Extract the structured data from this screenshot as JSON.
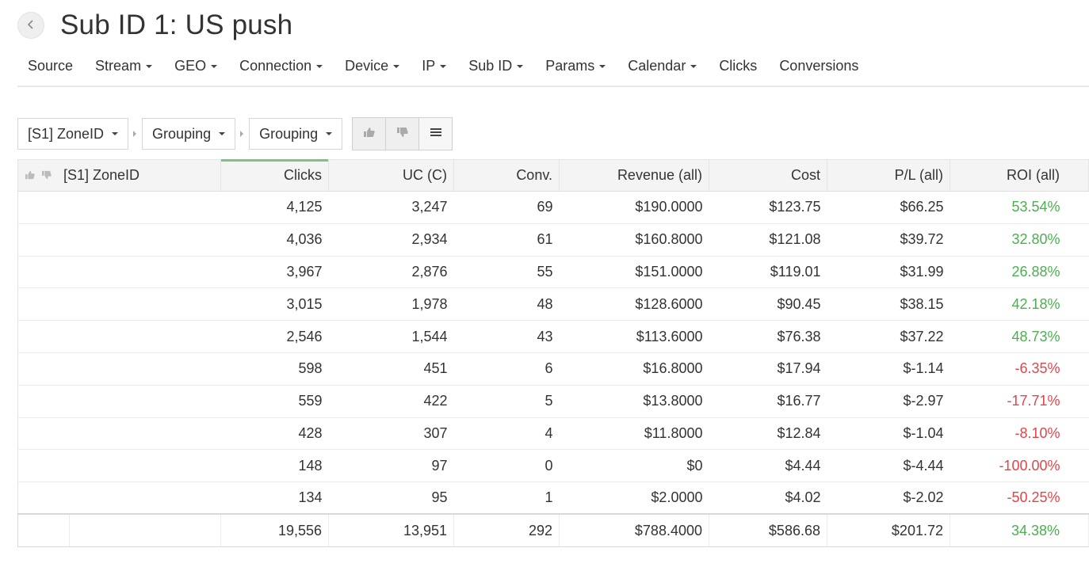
{
  "header": {
    "back_icon": "chevron-left-icon",
    "title": "Sub ID 1: US push"
  },
  "nav": {
    "items": [
      {
        "label": "Source",
        "dropdown": false
      },
      {
        "label": "Stream",
        "dropdown": true
      },
      {
        "label": "GEO",
        "dropdown": true
      },
      {
        "label": "Connection",
        "dropdown": true
      },
      {
        "label": "Device",
        "dropdown": true
      },
      {
        "label": "IP",
        "dropdown": true
      },
      {
        "label": "Sub ID",
        "dropdown": true
      },
      {
        "label": "Params",
        "dropdown": true
      },
      {
        "label": "Calendar",
        "dropdown": true
      },
      {
        "label": "Clicks",
        "dropdown": false
      },
      {
        "label": "Conversions",
        "dropdown": false
      }
    ]
  },
  "toolbar": {
    "group1": "[S1] ZoneID",
    "group2": "Grouping",
    "group3": "Grouping",
    "icons": [
      "thumbs-up-icon",
      "thumbs-down-icon",
      "list-icon"
    ]
  },
  "table": {
    "columns": [
      "[S1] ZoneID",
      "Clicks",
      "UC (C)",
      "Conv.",
      "Revenue (all)",
      "Cost",
      "P/L (all)",
      "ROI (all)"
    ],
    "rows": [
      {
        "zone": "",
        "clicks": "4,125",
        "uc": "3,247",
        "conv": "69",
        "revenue": "$190.0000",
        "cost": "$123.75",
        "pl": "$66.25",
        "roi": "53.54%",
        "roi_sign": "pos"
      },
      {
        "zone": "",
        "clicks": "4,036",
        "uc": "2,934",
        "conv": "61",
        "revenue": "$160.8000",
        "cost": "$121.08",
        "pl": "$39.72",
        "roi": "32.80%",
        "roi_sign": "pos"
      },
      {
        "zone": "",
        "clicks": "3,967",
        "uc": "2,876",
        "conv": "55",
        "revenue": "$151.0000",
        "cost": "$119.01",
        "pl": "$31.99",
        "roi": "26.88%",
        "roi_sign": "pos"
      },
      {
        "zone": "",
        "clicks": "3,015",
        "uc": "1,978",
        "conv": "48",
        "revenue": "$128.6000",
        "cost": "$90.45",
        "pl": "$38.15",
        "roi": "42.18%",
        "roi_sign": "pos"
      },
      {
        "zone": "",
        "clicks": "2,546",
        "uc": "1,544",
        "conv": "43",
        "revenue": "$113.6000",
        "cost": "$76.38",
        "pl": "$37.22",
        "roi": "48.73%",
        "roi_sign": "pos"
      },
      {
        "zone": "",
        "clicks": "598",
        "uc": "451",
        "conv": "6",
        "revenue": "$16.8000",
        "cost": "$17.94",
        "pl": "$-1.14",
        "roi": "-6.35%",
        "roi_sign": "neg"
      },
      {
        "zone": "",
        "clicks": "559",
        "uc": "422",
        "conv": "5",
        "revenue": "$13.8000",
        "cost": "$16.77",
        "pl": "$-2.97",
        "roi": "-17.71%",
        "roi_sign": "neg"
      },
      {
        "zone": "",
        "clicks": "428",
        "uc": "307",
        "conv": "4",
        "revenue": "$11.8000",
        "cost": "$12.84",
        "pl": "$-1.04",
        "roi": "-8.10%",
        "roi_sign": "neg"
      },
      {
        "zone": "",
        "clicks": "148",
        "uc": "97",
        "conv": "0",
        "revenue": "$0",
        "cost": "$4.44",
        "pl": "$-4.44",
        "roi": "-100.00%",
        "roi_sign": "neg"
      },
      {
        "zone": "",
        "clicks": "134",
        "uc": "95",
        "conv": "1",
        "revenue": "$2.0000",
        "cost": "$4.02",
        "pl": "$-2.02",
        "roi": "-50.25%",
        "roi_sign": "neg"
      }
    ],
    "total": {
      "zone": "",
      "clicks": "19,556",
      "uc": "13,951",
      "conv": "292",
      "revenue": "$788.4000",
      "cost": "$586.68",
      "pl": "$201.72",
      "roi": "34.38%",
      "roi_sign": "pos"
    }
  },
  "colors": {
    "positive": "#4caf50",
    "negative": "#e0454b",
    "sort_indicator": "#7bc67e"
  }
}
